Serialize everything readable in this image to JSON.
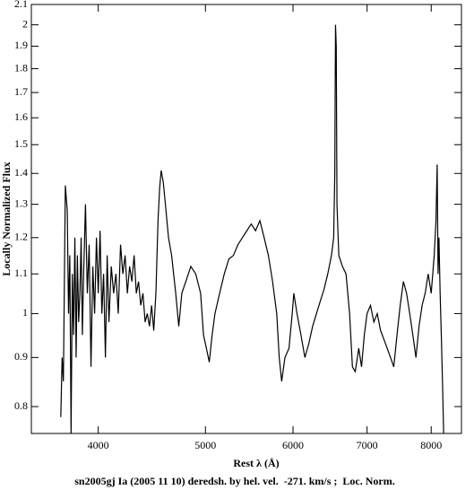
{
  "chart_data": {
    "type": "line",
    "xlabel": "Rest λ (Å)",
    "ylabel": "Locally Normalized Flux",
    "caption": "sn2005gj Ia (2005 11 10) deredsh. by hel. vel.  -271. km/s ;  Loc. Norm.",
    "xscale": "log",
    "yscale": "log",
    "xlim": [
      3480,
      8520
    ],
    "ylim": [
      0.75,
      2.1
    ],
    "xticks": [
      4000,
      5000,
      6000,
      7000,
      8000
    ],
    "yticks": [
      0.8,
      0.9,
      1,
      1.1,
      1.2,
      1.3,
      1.4,
      1.5,
      1.6,
      1.7,
      1.8,
      1.9,
      2,
      2.1
    ],
    "color": "#000000",
    "x": [
      3700,
      3710,
      3720,
      3735,
      3750,
      3760,
      3770,
      3780,
      3790,
      3800,
      3810,
      3820,
      3830,
      3840,
      3850,
      3860,
      3870,
      3880,
      3895,
      3910,
      3925,
      3940,
      3955,
      3970,
      3985,
      4000,
      4015,
      4030,
      4045,
      4060,
      4075,
      4090,
      4110,
      4130,
      4150,
      4170,
      4190,
      4210,
      4230,
      4250,
      4270,
      4290,
      4310,
      4330,
      4350,
      4370,
      4390,
      4410,
      4430,
      4450,
      4470,
      4490,
      4510,
      4530,
      4545,
      4560,
      4580,
      4600,
      4630,
      4660,
      4700,
      4730,
      4760,
      4800,
      4850,
      4900,
      4950,
      4980,
      5010,
      5040,
      5070,
      5100,
      5150,
      5200,
      5250,
      5300,
      5350,
      5400,
      5450,
      5500,
      5550,
      5600,
      5650,
      5700,
      5750,
      5800,
      5830,
      5860,
      5900,
      5950,
      5990,
      6010,
      6050,
      6100,
      6150,
      6200,
      6250,
      6300,
      6350,
      6400,
      6450,
      6500,
      6530,
      6545,
      6555,
      6565,
      6575,
      6600,
      6650,
      6700,
      6750,
      6790,
      6830,
      6880,
      6920,
      6960,
      7000,
      7050,
      7100,
      7150,
      7200,
      7250,
      7300,
      7350,
      7400,
      7450,
      7500,
      7550,
      7600,
      7650,
      7700,
      7750,
      7800,
      7850,
      7900,
      7950,
      8000,
      8050,
      8080,
      8100,
      8115,
      8130,
      8150,
      8170,
      8190,
      8210
    ],
    "values": [
      0.78,
      0.9,
      0.85,
      1.36,
      1.28,
      1.0,
      1.15,
      0.75,
      1.1,
      0.95,
      1.2,
      0.9,
      1.15,
      0.98,
      1.05,
      1.2,
      0.95,
      1.1,
      1.3,
      1.05,
      1.18,
      0.88,
      1.12,
      1.0,
      1.2,
      1.05,
      1.22,
      1.0,
      1.1,
      0.9,
      1.15,
      0.98,
      1.12,
      1.05,
      1.1,
      1.0,
      1.18,
      1.1,
      1.15,
      1.05,
      1.12,
      1.08,
      1.15,
      1.05,
      1.08,
      1.02,
      1.05,
      0.98,
      1.0,
      0.97,
      1.02,
      0.96,
      1.05,
      1.25,
      1.35,
      1.41,
      1.37,
      1.3,
      1.2,
      1.15,
      1.05,
      0.97,
      1.05,
      1.08,
      1.12,
      1.1,
      1.05,
      0.95,
      0.92,
      0.89,
      0.95,
      1.0,
      1.05,
      1.1,
      1.14,
      1.15,
      1.18,
      1.2,
      1.22,
      1.24,
      1.22,
      1.25,
      1.2,
      1.15,
      1.08,
      1.0,
      0.9,
      0.85,
      0.9,
      0.92,
      1.0,
      1.05,
      1.0,
      0.95,
      0.9,
      0.93,
      0.97,
      1.0,
      1.03,
      1.06,
      1.1,
      1.15,
      1.2,
      1.4,
      2.0,
      1.9,
      1.3,
      1.15,
      1.12,
      1.1,
      1.0,
      0.88,
      0.87,
      0.92,
      0.88,
      0.95,
      1.0,
      1.02,
      0.98,
      1.0,
      0.96,
      0.94,
      0.92,
      0.9,
      0.88,
      0.95,
      1.02,
      1.08,
      1.05,
      1.0,
      0.95,
      0.9,
      0.97,
      1.02,
      1.05,
      1.1,
      1.05,
      1.15,
      1.25,
      1.43,
      1.1,
      1.2,
      1.05,
      0.95,
      0.85,
      0.75
    ]
  }
}
